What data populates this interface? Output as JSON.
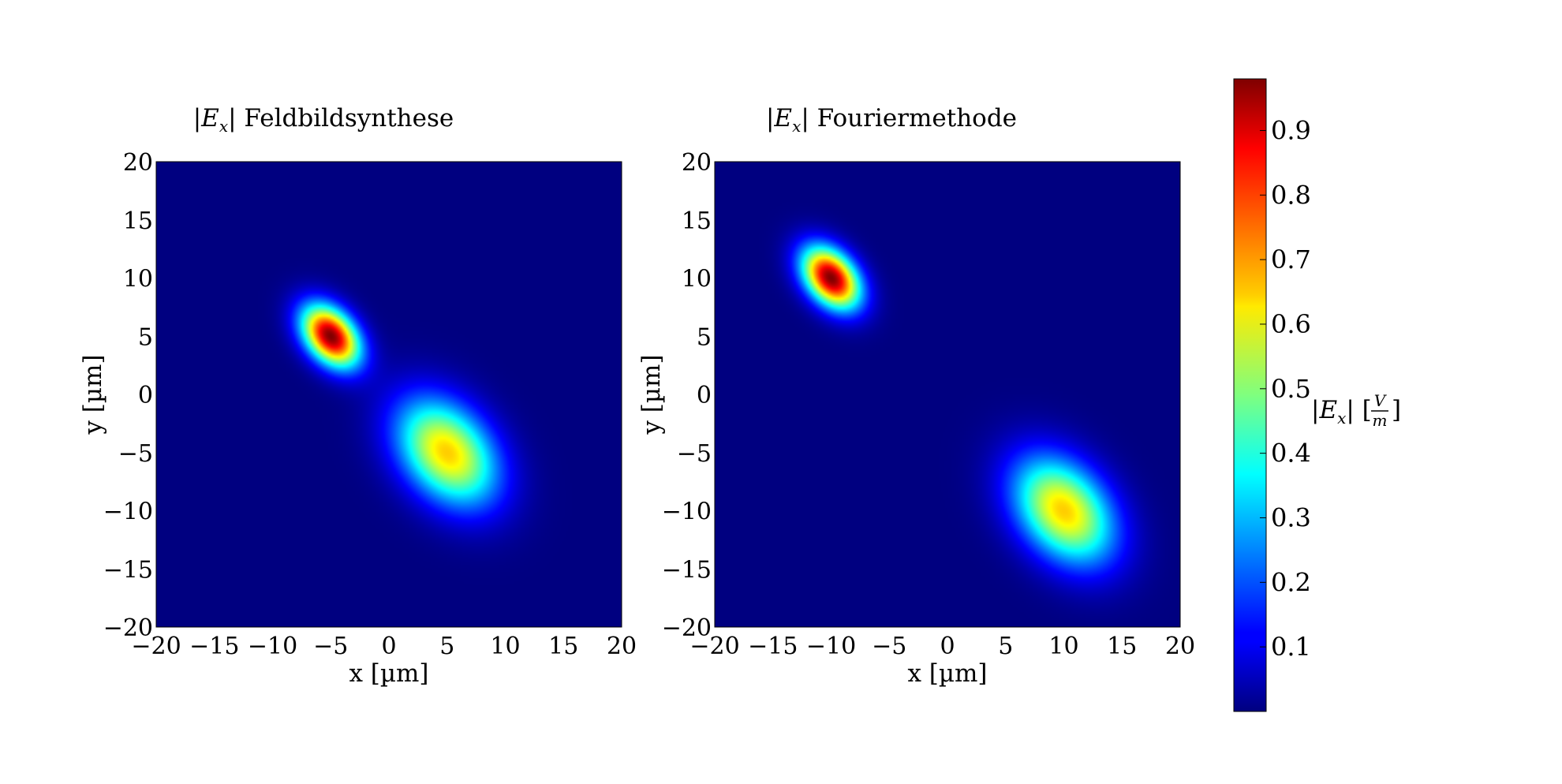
{
  "chart_data": [
    {
      "type": "heatmap",
      "title_symbol": "E",
      "title_sub": "x",
      "title_text": "Feldbildsynthese",
      "xlabel": "x [µm]",
      "ylabel": "y [µm]",
      "xlim": [
        -20,
        20
      ],
      "ylim": [
        -20,
        20
      ],
      "xticks": [
        -20,
        -15,
        -10,
        -5,
        0,
        5,
        10,
        15,
        20
      ],
      "yticks": [
        -20,
        -15,
        -10,
        -5,
        0,
        5,
        10,
        15,
        20
      ],
      "tick_labels": [
        "−20",
        "−15",
        "−10",
        "−5",
        "0",
        "5",
        "10",
        "15",
        "20"
      ],
      "colormap": "jet",
      "peaks": [
        {
          "x": -5,
          "y": 5,
          "amplitude": 0.98,
          "sigma_major": 2.1,
          "sigma_minor": 1.4,
          "angle_deg": -50
        },
        {
          "x": 5,
          "y": -5,
          "amplitude": 0.66,
          "sigma_major": 3.6,
          "sigma_minor": 2.5,
          "angle_deg": -50
        }
      ]
    },
    {
      "type": "heatmap",
      "title_symbol": "E",
      "title_sub": "x",
      "title_text": "Fouriermethode",
      "xlabel": "x [µm]",
      "ylabel": "y [µm]",
      "xlim": [
        -20,
        20
      ],
      "ylim": [
        -20,
        20
      ],
      "xticks": [
        -20,
        -15,
        -10,
        -5,
        0,
        5,
        10,
        15,
        20
      ],
      "yticks": [
        -20,
        -15,
        -10,
        -5,
        0,
        5,
        10,
        15,
        20
      ],
      "tick_labels": [
        "−20",
        "−15",
        "−10",
        "−5",
        "0",
        "5",
        "10",
        "15",
        "20"
      ],
      "colormap": "jet",
      "peaks": [
        {
          "x": -10,
          "y": 10,
          "amplitude": 0.98,
          "sigma_major": 2.1,
          "sigma_minor": 1.4,
          "angle_deg": -50
        },
        {
          "x": 10,
          "y": -10,
          "amplitude": 0.66,
          "sigma_major": 3.6,
          "sigma_minor": 2.5,
          "angle_deg": -50
        }
      ]
    }
  ],
  "colorbar": {
    "colormap": "jet",
    "range": [
      0.0,
      0.98
    ],
    "ticks": [
      0.1,
      0.2,
      0.3,
      0.4,
      0.5,
      0.6,
      0.7,
      0.8,
      0.9
    ],
    "tick_labels": [
      "0.1",
      "0.2",
      "0.3",
      "0.4",
      "0.5",
      "0.6",
      "0.7",
      "0.8",
      "0.9"
    ],
    "label_symbol": "E",
    "label_sub": "x",
    "label_unit_num": "V",
    "label_unit_den": "m"
  }
}
